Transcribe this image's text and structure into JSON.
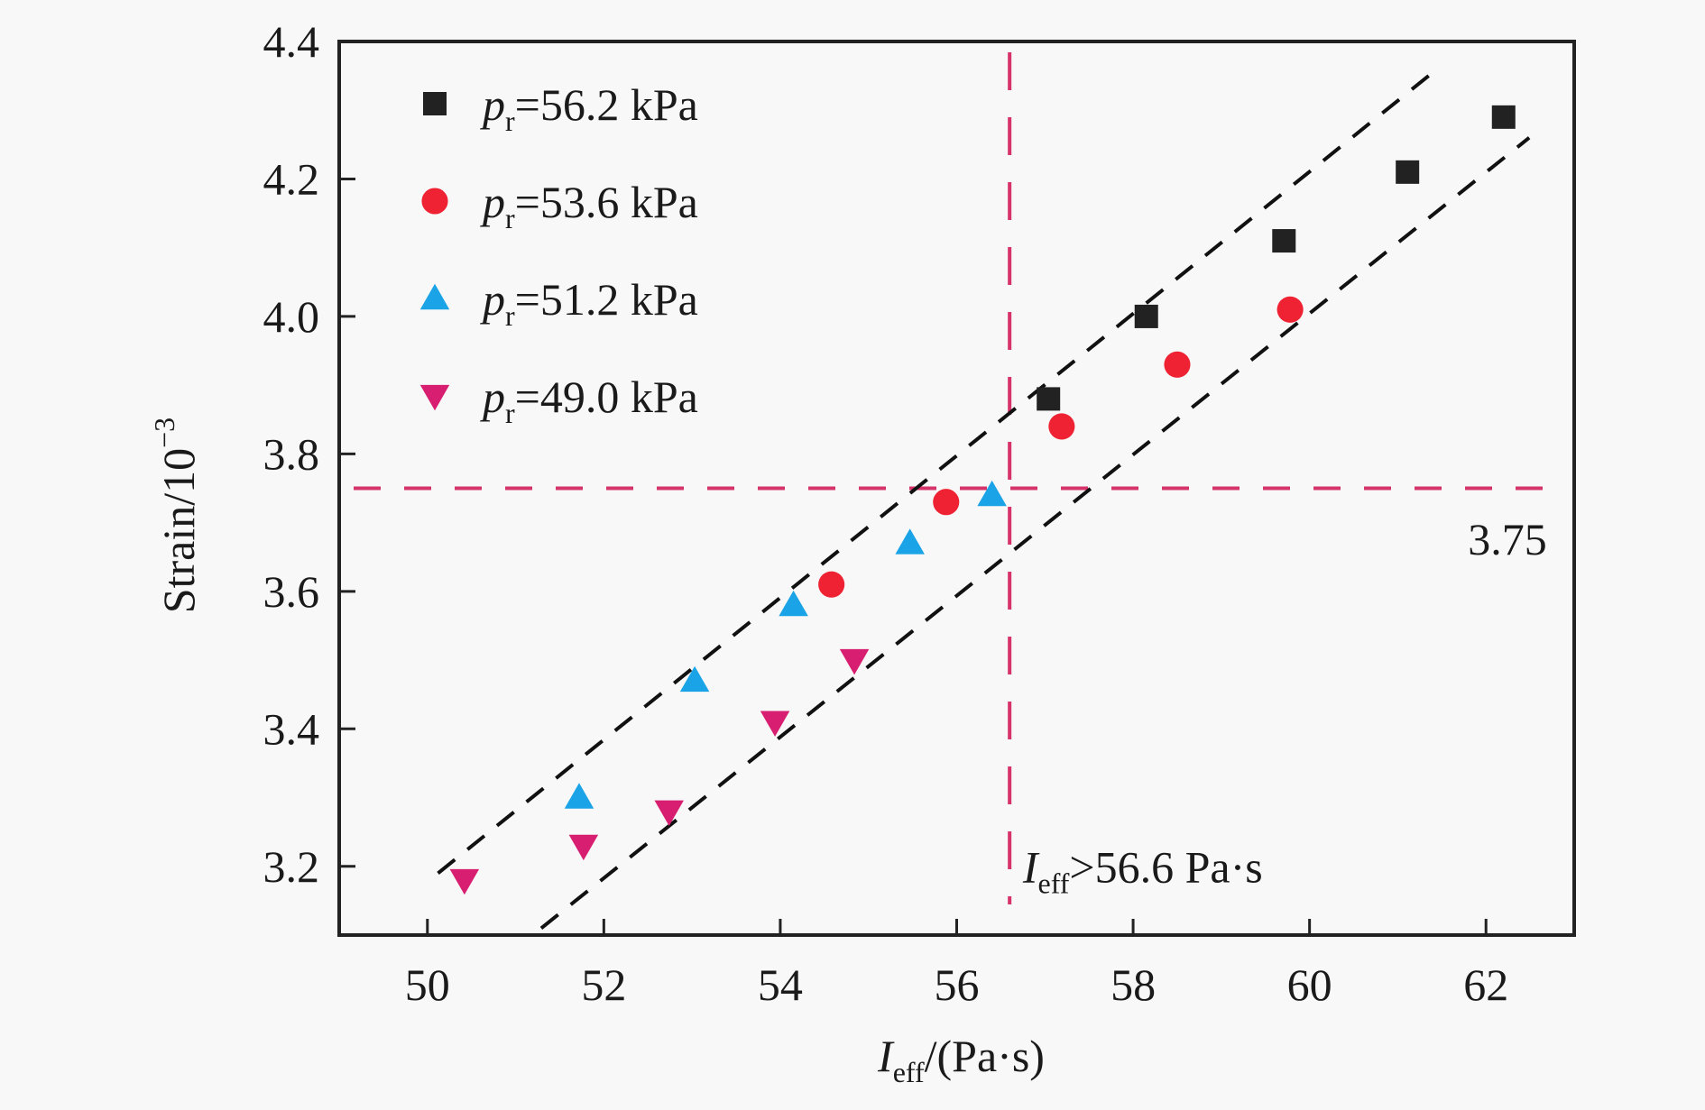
{
  "chart_data": {
    "type": "scatter",
    "title": "",
    "xlabel": {
      "main": "I",
      "sub": "eff",
      "rest": "/(Pa·s)"
    },
    "ylabel": {
      "main": "Strain/10",
      "sup": "−3"
    },
    "xlim": [
      49,
      63
    ],
    "ylim": [
      3.1,
      4.4
    ],
    "xticks": [
      50,
      52,
      54,
      56,
      58,
      60,
      62
    ],
    "yticks": [
      3.2,
      3.4,
      3.6,
      3.8,
      4.0,
      4.2,
      4.4
    ],
    "xtick_labels": [
      "50",
      "52",
      "54",
      "56",
      "58",
      "60",
      "62"
    ],
    "ytick_labels": [
      "3.2",
      "3.4",
      "3.6",
      "3.8",
      "4.0",
      "4.2",
      "4.4"
    ],
    "grid": false,
    "legend_position": "top-left",
    "series": [
      {
        "name": "p_r=56.2 kPa",
        "label_var": "p",
        "label_sub": "r",
        "label_rest": "=56.2 kPa",
        "marker": "square",
        "color": "#222222",
        "x": [
          57.04,
          58.15,
          59.71,
          61.11,
          62.2
        ],
        "y": [
          3.88,
          4.0,
          4.11,
          4.21,
          4.29
        ]
      },
      {
        "name": "p_r=53.6 kPa",
        "label_var": "p",
        "label_sub": "r",
        "label_rest": "=53.6 kPa",
        "marker": "circle",
        "color": "#ee2233",
        "x": [
          54.58,
          55.88,
          57.19,
          58.5,
          59.78
        ],
        "y": [
          3.61,
          3.73,
          3.84,
          3.93,
          4.01
        ]
      },
      {
        "name": "p_r=51.2 kPa",
        "label_var": "p",
        "label_sub": "r",
        "label_rest": "=51.2 kPa",
        "marker": "triangle-up",
        "color": "#1aa3e6",
        "x": [
          51.72,
          53.03,
          54.15,
          55.47,
          56.4
        ],
        "y": [
          3.3,
          3.47,
          3.58,
          3.67,
          3.74
        ]
      },
      {
        "name": "p_r=49.0 kPa",
        "label_var": "p",
        "label_sub": "r",
        "label_rest": "=49.0 kPa",
        "marker": "triangle-down",
        "color": "#d81e70",
        "x": [
          50.42,
          51.77,
          52.74,
          53.94,
          54.84
        ],
        "y": [
          3.18,
          3.23,
          3.28,
          3.41,
          3.5
        ]
      }
    ],
    "fit_lines": [
      {
        "name": "upper-bound-line",
        "style": "dashed",
        "color": "#111111",
        "x": [
          50.12,
          61.35
        ],
        "y": [
          3.19,
          4.35
        ]
      },
      {
        "name": "lower-bound-line",
        "style": "dashed",
        "color": "#111111",
        "x": [
          51.29,
          62.49
        ],
        "y": [
          3.11,
          4.26
        ]
      }
    ],
    "reference_lines": [
      {
        "name": "threshold-strain-line",
        "orientation": "horizontal",
        "value": 3.75,
        "color": "#d6336a",
        "style": "dashed"
      },
      {
        "name": "threshold-ieff-line",
        "orientation": "vertical",
        "value": 56.6,
        "color": "#d6336a",
        "style": "dashed"
      }
    ],
    "annotations": [
      {
        "name": "strain-threshold-label",
        "text": "3.75",
        "x": 62.0,
        "y": 3.69
      },
      {
        "name": "ieff-threshold-label",
        "main": "I",
        "sub": "eff",
        "rest": ">56.6 Pa·s",
        "x": 56.75,
        "y": 3.19
      }
    ]
  }
}
